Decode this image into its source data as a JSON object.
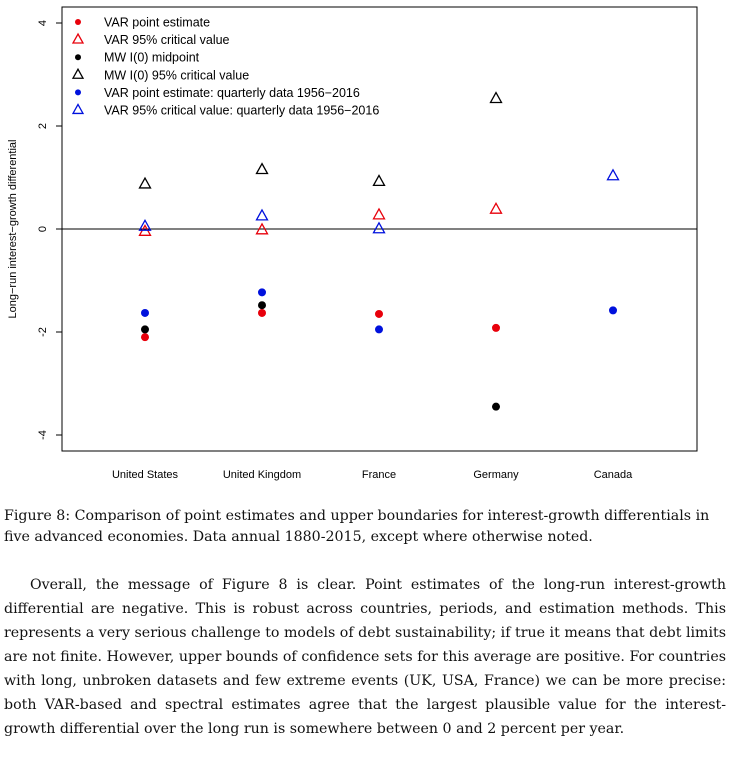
{
  "chart_data": {
    "type": "scatter",
    "ylabel": "Long−run interest−growth differential",
    "categories": [
      "United States",
      "United Kingdom",
      "France",
      "Germany",
      "Canada"
    ],
    "ylim": [
      -4.3,
      4.3
    ],
    "yticks": [
      -4,
      -2,
      0,
      2,
      4
    ],
    "reference_line_y": 0,
    "legend_position": "top-left",
    "series": [
      {
        "name": "VAR point estimate",
        "marker": "dot",
        "color": "#e8000b",
        "values": [
          -2.1,
          -1.63,
          -1.65,
          -1.92,
          null
        ]
      },
      {
        "name": "VAR 95% critical value",
        "marker": "triangle",
        "color": "#e8000b",
        "values": [
          -0.05,
          -0.02,
          0.27,
          0.38,
          null
        ]
      },
      {
        "name": "MW I(0) midpoint",
        "marker": "dot",
        "color": "#000000",
        "values": [
          -1.95,
          -1.48,
          null,
          -3.45,
          null
        ]
      },
      {
        "name": "MW I(0) 95% critical value",
        "marker": "triangle",
        "color": "#000000",
        "values": [
          0.87,
          1.15,
          0.92,
          2.53,
          null
        ]
      },
      {
        "name": "VAR point estimate: quarterly data 1956−2016",
        "marker": "dot",
        "color": "#0011dd",
        "values": [
          -1.63,
          -1.23,
          -1.95,
          null,
          -1.58
        ]
      },
      {
        "name": "VAR 95% critical value: quarterly data 1956−2016",
        "marker": "triangle",
        "color": "#0011dd",
        "values": [
          0.05,
          0.25,
          0.0,
          null,
          1.03
        ]
      }
    ]
  },
  "caption": "Figure 8: Comparison of point estimates and upper boundaries for interest-growth differentials in five advanced economies. Data annual 1880-2015, except where otherwise noted.",
  "body": "Overall, the message of Figure 8 is clear.  Point estimates of the long-run interest-growth differential are negative. This is robust across countries, periods, and estimation methods. This represents a very serious challenge to models of debt sustainability; if true it means that debt limits are not finite.  However, upper bounds of confidence sets for this average are positive. For countries with long, unbroken datasets and few extreme events (UK, USA, France) we can be more precise: both VAR-based and spectral estimates agree that the largest plausible value for the interest-growth differential over the long run is somewhere between 0 and 2 percent per year."
}
